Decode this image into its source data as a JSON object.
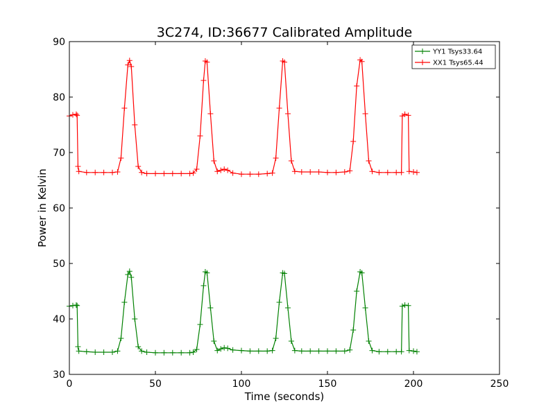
{
  "chart_data": {
    "type": "line",
    "title": "3C274, ID:36677 Calibrated Amplitude",
    "xlabel": "Time (seconds)",
    "ylabel": "Power in Kelvin",
    "xlim": [
      0,
      250
    ],
    "ylim": [
      30,
      90
    ],
    "xticks": [
      0,
      50,
      100,
      150,
      200,
      250
    ],
    "yticks": [
      30,
      40,
      50,
      60,
      70,
      80,
      90
    ],
    "grid": false,
    "legend_position": "top-right",
    "marker": "+",
    "series": [
      {
        "name": "YY1 Tsys33.64",
        "color": "#008000",
        "points": [
          [
            0,
            42.3
          ],
          [
            2,
            42.4
          ],
          [
            4,
            42.5
          ],
          [
            4.5,
            42.4
          ],
          [
            5,
            35.0
          ],
          [
            5.5,
            34.2
          ],
          [
            10,
            34.1
          ],
          [
            15,
            34.0
          ],
          [
            20,
            34.0
          ],
          [
            25,
            34.0
          ],
          [
            28,
            34.2
          ],
          [
            30,
            36.5
          ],
          [
            32,
            43.0
          ],
          [
            34,
            48.0
          ],
          [
            35,
            48.6
          ],
          [
            36,
            47.5
          ],
          [
            38,
            40.0
          ],
          [
            40,
            35.0
          ],
          [
            42,
            34.2
          ],
          [
            45,
            34.0
          ],
          [
            50,
            33.9
          ],
          [
            55,
            33.9
          ],
          [
            60,
            33.9
          ],
          [
            65,
            33.9
          ],
          [
            70,
            33.9
          ],
          [
            72,
            34.0
          ],
          [
            74,
            34.5
          ],
          [
            76,
            39.0
          ],
          [
            78,
            46.0
          ],
          [
            79,
            48.5
          ],
          [
            80,
            48.3
          ],
          [
            82,
            42.0
          ],
          [
            84,
            36.0
          ],
          [
            86,
            34.3
          ],
          [
            88,
            34.6
          ],
          [
            90,
            34.8
          ],
          [
            92,
            34.7
          ],
          [
            95,
            34.4
          ],
          [
            100,
            34.3
          ],
          [
            105,
            34.2
          ],
          [
            110,
            34.2
          ],
          [
            115,
            34.2
          ],
          [
            118,
            34.3
          ],
          [
            120,
            36.5
          ],
          [
            122,
            43.0
          ],
          [
            124,
            48.3
          ],
          [
            125,
            48.2
          ],
          [
            127,
            42.0
          ],
          [
            129,
            36.0
          ],
          [
            131,
            34.3
          ],
          [
            135,
            34.2
          ],
          [
            140,
            34.2
          ],
          [
            145,
            34.2
          ],
          [
            150,
            34.2
          ],
          [
            155,
            34.2
          ],
          [
            160,
            34.2
          ],
          [
            163,
            34.4
          ],
          [
            165,
            38.0
          ],
          [
            167,
            45.0
          ],
          [
            169,
            48.5
          ],
          [
            170,
            48.3
          ],
          [
            172,
            42.0
          ],
          [
            174,
            36.0
          ],
          [
            176,
            34.3
          ],
          [
            180,
            34.1
          ],
          [
            185,
            34.1
          ],
          [
            190,
            34.1
          ],
          [
            193,
            34.1
          ],
          [
            193.5,
            42.3
          ],
          [
            195,
            42.5
          ],
          [
            197,
            42.4
          ],
          [
            197.5,
            34.3
          ],
          [
            200,
            34.2
          ],
          [
            202,
            34.1
          ]
        ]
      },
      {
        "name": "XX1 Tsys65.44",
        "color": "#ff0000",
        "points": [
          [
            0,
            76.6
          ],
          [
            2,
            76.8
          ],
          [
            4,
            76.9
          ],
          [
            4.5,
            76.7
          ],
          [
            5,
            67.5
          ],
          [
            5.5,
            66.6
          ],
          [
            10,
            66.4
          ],
          [
            15,
            66.4
          ],
          [
            20,
            66.4
          ],
          [
            25,
            66.4
          ],
          [
            28,
            66.5
          ],
          [
            30,
            69.0
          ],
          [
            32,
            78.0
          ],
          [
            34,
            85.8
          ],
          [
            35,
            86.6
          ],
          [
            36,
            85.5
          ],
          [
            38,
            75.0
          ],
          [
            40,
            67.5
          ],
          [
            42,
            66.4
          ],
          [
            45,
            66.2
          ],
          [
            50,
            66.2
          ],
          [
            55,
            66.2
          ],
          [
            60,
            66.2
          ],
          [
            65,
            66.2
          ],
          [
            70,
            66.2
          ],
          [
            72,
            66.3
          ],
          [
            74,
            67.0
          ],
          [
            76,
            73.0
          ],
          [
            78,
            83.0
          ],
          [
            79,
            86.5
          ],
          [
            80,
            86.3
          ],
          [
            82,
            77.0
          ],
          [
            84,
            68.5
          ],
          [
            86,
            66.6
          ],
          [
            88,
            66.8
          ],
          [
            90,
            67.0
          ],
          [
            92,
            66.8
          ],
          [
            95,
            66.3
          ],
          [
            100,
            66.1
          ],
          [
            105,
            66.1
          ],
          [
            110,
            66.1
          ],
          [
            115,
            66.2
          ],
          [
            118,
            66.3
          ],
          [
            120,
            69.0
          ],
          [
            122,
            78.0
          ],
          [
            124,
            86.5
          ],
          [
            125,
            86.3
          ],
          [
            127,
            77.0
          ],
          [
            129,
            68.5
          ],
          [
            131,
            66.6
          ],
          [
            135,
            66.5
          ],
          [
            140,
            66.5
          ],
          [
            145,
            66.5
          ],
          [
            150,
            66.4
          ],
          [
            155,
            66.4
          ],
          [
            160,
            66.5
          ],
          [
            163,
            66.7
          ],
          [
            165,
            72.0
          ],
          [
            167,
            82.0
          ],
          [
            169,
            86.7
          ],
          [
            170,
            86.4
          ],
          [
            172,
            77.0
          ],
          [
            174,
            68.5
          ],
          [
            176,
            66.6
          ],
          [
            180,
            66.4
          ],
          [
            185,
            66.4
          ],
          [
            190,
            66.4
          ],
          [
            193,
            66.4
          ],
          [
            193.5,
            76.6
          ],
          [
            195,
            76.9
          ],
          [
            197,
            76.7
          ],
          [
            197.5,
            66.6
          ],
          [
            200,
            66.5
          ],
          [
            202,
            66.4
          ]
        ]
      }
    ]
  }
}
